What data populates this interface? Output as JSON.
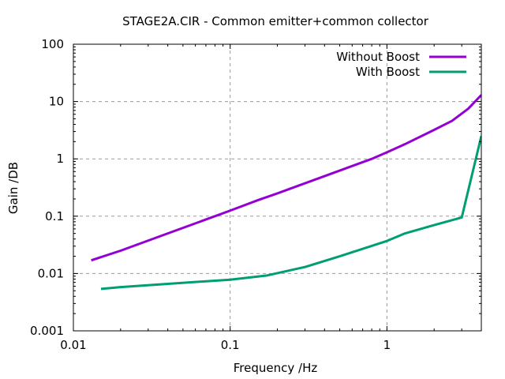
{
  "chart_data": {
    "type": "line",
    "title": "STAGE2A.CIR - Common emitter+common collector",
    "xlabel": "Frequency /Hz",
    "ylabel": "Gain /DB",
    "xscale": "log",
    "yscale": "log",
    "xlim": [
      0.01,
      4
    ],
    "ylim": [
      0.001,
      100
    ],
    "xticks": [
      0.01,
      0.1,
      1
    ],
    "xtick_labels": [
      "0.01",
      "0.1",
      "1"
    ],
    "yticks": [
      0.001,
      0.01,
      0.1,
      1,
      10,
      100
    ],
    "ytick_labels": [
      "0.001",
      "0.01",
      "0.1",
      "1",
      "10",
      "100"
    ],
    "grid": true,
    "legend_position": "top-right",
    "series": [
      {
        "name": "Without Boost",
        "color": "#9400d3",
        "x": [
          0.013,
          0.02,
          0.04,
          0.08,
          0.1,
          0.15,
          0.2,
          0.4,
          0.8,
          1.0,
          1.3,
          2.0,
          2.6,
          3.3,
          4.0
        ],
        "y": [
          0.017,
          0.025,
          0.05,
          0.1,
          0.125,
          0.19,
          0.25,
          0.5,
          1.0,
          1.3,
          1.8,
          3.2,
          4.6,
          7.5,
          13
        ]
      },
      {
        "name": "With Boost",
        "color": "#009e73",
        "x": [
          0.015,
          0.02,
          0.04,
          0.08,
          0.1,
          0.17,
          0.3,
          0.5,
          1.0,
          1.3,
          2.0,
          3.0,
          4.0
        ],
        "y": [
          0.0054,
          0.0058,
          0.0066,
          0.0075,
          0.0078,
          0.0092,
          0.013,
          0.02,
          0.037,
          0.05,
          0.07,
          0.095,
          2.5
        ]
      }
    ]
  }
}
